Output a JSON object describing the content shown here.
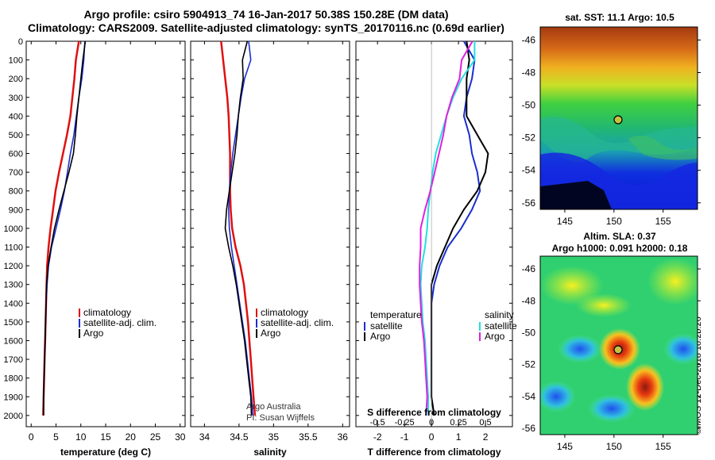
{
  "header": {
    "title_line1": "Argo profile: csiro 5904913_74 16-Jan-2017 50.38S 150.28E (DM data)",
    "title_line2": "Climatology: CARS2009. Satellite-adjusted climatology: synTS_20170116.nc (0.69d earlier)"
  },
  "colors": {
    "climatology": "#e01010",
    "satellite": "#1a2fd0",
    "argo": "#000000",
    "satellite_salinity": "#20e0e0",
    "argo_salinity": "#e020e0"
  },
  "chart_data": [
    {
      "type": "line",
      "name": "temperature-panel",
      "xlabel": "temperature (deg C)",
      "ylabel": "",
      "xlim": [
        -1,
        31
      ],
      "ylim": [
        2060,
        0
      ],
      "xticks": [
        0,
        5,
        10,
        15,
        20,
        25,
        30
      ],
      "yticks": [
        0,
        100,
        200,
        300,
        400,
        500,
        600,
        700,
        800,
        900,
        1000,
        1100,
        1200,
        1300,
        1400,
        1500,
        1600,
        1700,
        1800,
        1900,
        2000
      ],
      "legend": [
        "climatology",
        "satellite-adj. clim.",
        "Argo"
      ],
      "legend_location": "lower-right",
      "series": [
        {
          "name": "climatology",
          "depth": [
            0,
            100,
            200,
            300,
            400,
            500,
            600,
            700,
            800,
            900,
            1000,
            1100,
            1200,
            1300,
            1400,
            1500,
            1600,
            1700,
            1800,
            1900,
            2000
          ],
          "values": [
            9.6,
            9.0,
            8.7,
            8.3,
            7.9,
            7.2,
            6.4,
            5.6,
            4.9,
            4.4,
            3.9,
            3.5,
            3.2,
            3.1,
            3.0,
            2.9,
            2.8,
            2.7,
            2.6,
            2.5,
            2.4
          ]
        },
        {
          "name": "satellite-adj. clim.",
          "depth": [
            0,
            100,
            200,
            300,
            400,
            500,
            600,
            700,
            800,
            900,
            1000,
            1100,
            1200,
            1300,
            1400,
            1500,
            1600,
            1700,
            1800,
            1900,
            2000
          ],
          "values": [
            10.8,
            10.6,
            10.2,
            9.6,
            9.1,
            8.6,
            7.9,
            7.3,
            6.7,
            5.9,
            5.0,
            4.1,
            3.5,
            3.2,
            3.0,
            2.9,
            2.8,
            2.7,
            2.6,
            2.5,
            2.5
          ]
        },
        {
          "name": "Argo",
          "depth": [
            0,
            100,
            200,
            300,
            400,
            500,
            600,
            700,
            800,
            900,
            1000,
            1100,
            1200,
            1300,
            1400,
            1500,
            1600,
            1700,
            1800,
            1900,
            2000
          ],
          "values": [
            10.9,
            10.4,
            10.0,
            9.6,
            9.2,
            8.9,
            8.5,
            7.6,
            6.6,
            5.6,
            4.7,
            4.0,
            3.4,
            3.1,
            3.0,
            2.9,
            2.8,
            2.7,
            2.6,
            2.5,
            2.5
          ]
        }
      ]
    },
    {
      "type": "line",
      "name": "salinity-panel",
      "xlabel": "salinity",
      "xlim": [
        33.8,
        36.1
      ],
      "ylim": [
        2060,
        0
      ],
      "xticks": [
        34,
        34.5,
        35,
        35.5,
        36
      ],
      "legend": [
        "climatology",
        "satellite-adj. clim.",
        "Argo"
      ],
      "legend_location": "lower-right",
      "series": [
        {
          "name": "climatology",
          "depth": [
            0,
            100,
            200,
            300,
            400,
            500,
            600,
            700,
            800,
            900,
            1000,
            1100,
            1200,
            1300,
            1400,
            1500,
            1600,
            1700,
            1800,
            1900,
            2000
          ],
          "values": [
            34.24,
            34.27,
            34.3,
            34.33,
            34.35,
            34.36,
            34.37,
            34.37,
            34.37,
            34.38,
            34.4,
            34.45,
            34.52,
            34.57,
            34.6,
            34.63,
            34.65,
            34.67,
            34.69,
            34.71,
            34.73
          ]
        },
        {
          "name": "satellite-adj. clim.",
          "depth": [
            0,
            100,
            200,
            300,
            400,
            500,
            600,
            700,
            800,
            900,
            1000,
            1100,
            1200,
            1300,
            1400,
            1500,
            1600,
            1700,
            1800,
            1900,
            2000
          ],
          "values": [
            34.64,
            34.67,
            34.58,
            34.53,
            34.49,
            34.45,
            34.41,
            34.38,
            34.36,
            34.35,
            34.36,
            34.39,
            34.43,
            34.47,
            34.51,
            34.55,
            34.59,
            34.62,
            34.65,
            34.68,
            34.7
          ]
        },
        {
          "name": "Argo",
          "depth": [
            0,
            100,
            200,
            300,
            400,
            500,
            600,
            700,
            800,
            900,
            1000,
            1100,
            1200,
            1300,
            1400,
            1500,
            1600,
            1700,
            1800,
            1900,
            2000
          ],
          "values": [
            34.62,
            34.55,
            34.56,
            34.52,
            34.49,
            34.47,
            34.44,
            34.4,
            34.36,
            34.32,
            34.3,
            34.35,
            34.41,
            34.46,
            34.5,
            34.54,
            34.58,
            34.61,
            34.64,
            34.67,
            34.68
          ]
        }
      ]
    },
    {
      "type": "line",
      "name": "difference-panel",
      "xlabel": "T difference from climatology",
      "xlabel2": "S difference from climatology",
      "xlim": [
        -2.8,
        3.0
      ],
      "ylim": [
        2060,
        0
      ],
      "xticks": [
        -2,
        -1,
        0,
        1,
        2
      ],
      "xticks_s": [
        "-0.5",
        "-0.25",
        "0",
        "0.25",
        "0.5"
      ],
      "legend_temperature": {
        "title": "temperature",
        "items": [
          "satellite",
          "Argo"
        ]
      },
      "legend_salinity": {
        "title": "salinity",
        "items": [
          "satellite",
          "Argo"
        ]
      },
      "series": [
        {
          "name": "temperature satellite",
          "depth": [
            0,
            100,
            200,
            300,
            400,
            500,
            600,
            700,
            800,
            900,
            1000,
            1100,
            1200,
            1300,
            1400,
            1500,
            1600,
            1700,
            1800,
            1900,
            2000
          ],
          "values": [
            1.2,
            1.6,
            1.5,
            1.3,
            1.2,
            1.4,
            1.5,
            1.7,
            1.8,
            1.5,
            1.1,
            0.6,
            0.3,
            0.1,
            0.0,
            0.0,
            0.0,
            0.0,
            0.0,
            0.0,
            0.1
          ]
        },
        {
          "name": "temperature Argo",
          "depth": [
            0,
            100,
            200,
            300,
            400,
            500,
            600,
            700,
            800,
            900,
            1000,
            1100,
            1200,
            1300,
            1400,
            1500,
            1600,
            1700,
            1800,
            1900,
            2000
          ],
          "values": [
            1.3,
            1.4,
            1.3,
            1.3,
            1.3,
            1.7,
            2.1,
            2.0,
            1.7,
            1.2,
            0.8,
            0.5,
            0.2,
            0.0,
            0.0,
            0.0,
            0.0,
            0.0,
            0.0,
            0.0,
            0.1
          ]
        },
        {
          "name": "salinity satellite",
          "depth": [
            0,
            100,
            200,
            300,
            400,
            500,
            600,
            700,
            800,
            900,
            1000,
            1100,
            1200,
            1300,
            1400,
            1500,
            1600,
            1700,
            1800,
            1900,
            2000
          ],
          "values": [
            0.4,
            0.4,
            0.28,
            0.2,
            0.14,
            0.09,
            0.04,
            0.01,
            -0.01,
            -0.03,
            -0.04,
            -0.06,
            -0.09,
            -0.1,
            -0.09,
            -0.08,
            -0.06,
            -0.05,
            -0.04,
            -0.03,
            -0.03
          ]
        },
        {
          "name": "salinity Argo",
          "depth": [
            0,
            100,
            200,
            300,
            400,
            500,
            600,
            700,
            800,
            900,
            1000,
            1100,
            1200,
            1300,
            1400,
            1500,
            1600,
            1700,
            1800,
            1900,
            2000
          ],
          "values": [
            0.38,
            0.28,
            0.26,
            0.19,
            0.14,
            0.11,
            0.07,
            0.03,
            -0.01,
            -0.06,
            -0.1,
            -0.1,
            -0.11,
            -0.11,
            -0.1,
            -0.09,
            -0.07,
            -0.06,
            -0.05,
            -0.04,
            -0.05
          ]
        }
      ]
    },
    {
      "type": "heatmap",
      "name": "sst-map",
      "title": "sat. SST: 11.1  Argo: 10.5",
      "xticks": [
        145,
        150,
        155
      ],
      "yticks": [
        -46,
        -48,
        -50,
        -52,
        -54,
        -56
      ],
      "marker": {
        "lon": 150.28,
        "lat": -50.38
      }
    },
    {
      "type": "heatmap",
      "name": "sla-map",
      "title": "Altim. SLA: 0.37",
      "subtitle": "Argo h1000: 0.091 h2000: 0.18",
      "xticks": [
        145,
        150,
        155
      ],
      "yticks": [
        -46,
        -48,
        -50,
        -52,
        -54,
        -56
      ],
      "marker": {
        "lon": 150.28,
        "lat": -50.38
      }
    }
  ],
  "labels": {
    "clim": "climatology",
    "sat": "satellite-adj. clim.",
    "argo": "Argo",
    "temperature": "temperature",
    "salinity": "salinity",
    "satellite": "satellite",
    "credit1": "Argo Australia",
    "credit2": "PI: Susan Wijffels",
    "imos": "©IMOS 12-Dec-2018 18:25:26"
  }
}
